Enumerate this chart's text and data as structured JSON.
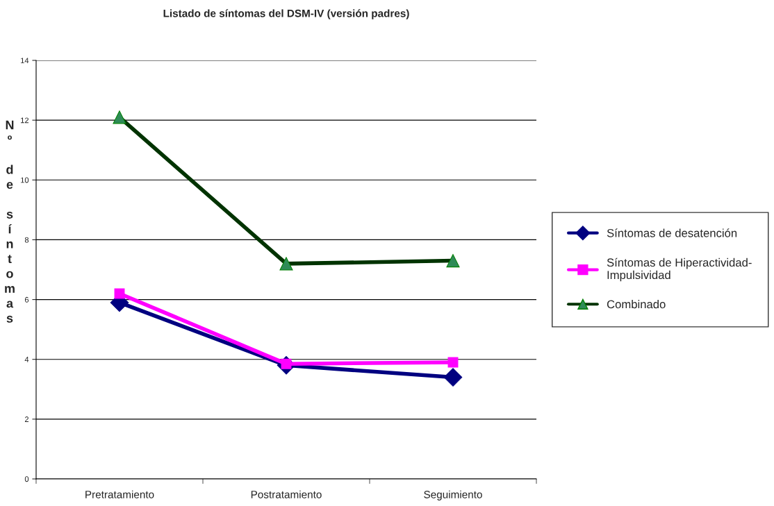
{
  "chart_data": {
    "type": "line",
    "title": "Listado de síntomas del DSM-IV (versión padres)",
    "ylabel": "Nº de síntomas",
    "categories": [
      "Pretratamiento",
      "Postratamiento",
      "Seguimiento"
    ],
    "series": [
      {
        "name": "Síntomas de desatención",
        "color": "#000080",
        "marker": "diamond",
        "values": [
          5.9,
          3.8,
          3.4
        ]
      },
      {
        "name": "Síntomas de Hiperactividad-Impulsividad",
        "color": "#ff00ff",
        "marker": "square",
        "values": [
          6.2,
          3.85,
          3.9
        ]
      },
      {
        "name": "Combinado",
        "color": "#003300",
        "marker": "triangle",
        "values": [
          12.1,
          7.2,
          7.3
        ]
      }
    ],
    "ylim": [
      0,
      14
    ],
    "yticks": [
      0,
      2,
      4,
      6,
      8,
      10,
      12,
      14
    ],
    "grid": "y",
    "legend": "right",
    "line_style": "solid"
  }
}
